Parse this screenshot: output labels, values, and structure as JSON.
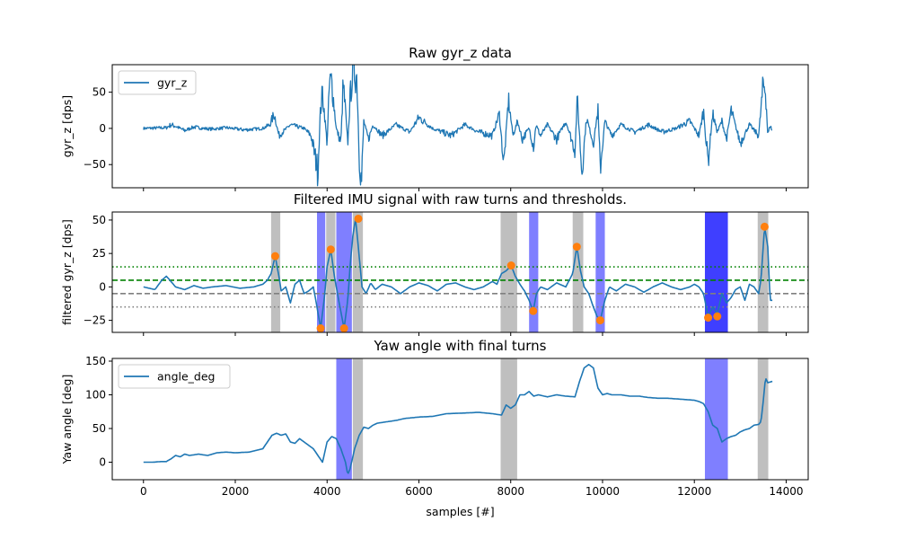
{
  "chart_data": [
    {
      "type": "line",
      "title": "Raw gyr_z data",
      "xlabel": "",
      "ylabel": "gyr_z [dps]",
      "xlim": [
        -680,
        14480
      ],
      "ylim": [
        -82,
        88
      ],
      "xticks": [
        0,
        2000,
        4000,
        6000,
        8000,
        10000,
        12000,
        14000
      ],
      "xtick_labels_visible": false,
      "yticks": [
        -50,
        0,
        50
      ],
      "ytick_labels": [
        "−50",
        "0",
        "50"
      ],
      "legend": {
        "position": "upper-left",
        "entries": [
          "gyr_z"
        ]
      },
      "series": [
        {
          "name": "gyr_z",
          "color": "#1f77b4",
          "noisy": true,
          "x": [
            0,
            500,
            600,
            700,
            900,
            1100,
            1300,
            1500,
            1800,
            2200,
            2600,
            2750,
            2850,
            2950,
            3200,
            3500,
            3650,
            3700,
            3800,
            3850,
            3900,
            4000,
            4050,
            4100,
            4200,
            4300,
            4350,
            4400,
            4450,
            4500,
            4550,
            4600,
            4650,
            4700,
            4750,
            4800,
            4900,
            5000,
            5200,
            5500,
            5800,
            6000,
            6300,
            6700,
            7000,
            7300,
            7600,
            7750,
            7850,
            7950,
            8050,
            8150,
            8250,
            8400,
            8500,
            8550,
            8650,
            8800,
            9000,
            9200,
            9400,
            9450,
            9550,
            9650,
            9800,
            9900,
            9950,
            10050,
            10200,
            10400,
            10700,
            11000,
            11300,
            11600,
            11900,
            12100,
            12200,
            12250,
            12300,
            12400,
            12500,
            12600,
            12700,
            12800,
            13000,
            13200,
            13400,
            13500,
            13550,
            13600,
            13650,
            13700
          ],
          "y": [
            0,
            1,
            5,
            3,
            -3,
            2,
            0,
            -1,
            1,
            -2,
            0,
            5,
            20,
            -10,
            5,
            0,
            -10,
            -25,
            -60,
            20,
            50,
            -20,
            60,
            65,
            0,
            -20,
            60,
            25,
            -20,
            40,
            75,
            80,
            70,
            -40,
            -75,
            10,
            -15,
            5,
            -10,
            5,
            -5,
            15,
            0,
            -10,
            5,
            -5,
            -10,
            20,
            -50,
            40,
            -10,
            10,
            -15,
            0,
            -25,
            5,
            -10,
            5,
            -15,
            10,
            -30,
            40,
            -60,
            15,
            -20,
            25,
            -55,
            10,
            -10,
            5,
            -5,
            5,
            -5,
            0,
            10,
            -10,
            25,
            -15,
            -45,
            20,
            -5,
            10,
            -15,
            25,
            -20,
            5,
            -10,
            60,
            55,
            -10,
            5,
            -5
          ]
        }
      ]
    },
    {
      "type": "line",
      "title": "Filtered IMU signal with raw turns and thresholds.",
      "xlabel": "",
      "ylabel": "filtered gyr_z [dps]",
      "xlim": [
        -680,
        14480
      ],
      "ylim": [
        -34,
        56
      ],
      "xticks": [
        0,
        2000,
        4000,
        6000,
        8000,
        10000,
        12000,
        14000
      ],
      "xtick_labels_visible": false,
      "yticks": [
        -25,
        0,
        25,
        50
      ],
      "ytick_labels": [
        "−25",
        "0",
        "25",
        "50"
      ],
      "hlines": [
        {
          "y": 15,
          "color": "#008000",
          "style": "dotted"
        },
        {
          "y": 5,
          "color": "#008000",
          "style": "dashed"
        },
        {
          "y": -5,
          "color": "#808080",
          "style": "dashed"
        },
        {
          "y": -15,
          "color": "#808080",
          "style": "dotted"
        }
      ],
      "spans": [
        {
          "x0": 2780,
          "x1": 2980,
          "color": "#808080",
          "opacity": 0.5
        },
        {
          "x0": 3780,
          "x1": 3960,
          "color": "#0000ff",
          "opacity": 0.5
        },
        {
          "x0": 3980,
          "x1": 4180,
          "color": "#808080",
          "opacity": 0.5
        },
        {
          "x0": 4200,
          "x1": 4540,
          "color": "#0000ff",
          "opacity": 0.5
        },
        {
          "x0": 4560,
          "x1": 4780,
          "color": "#808080",
          "opacity": 0.5
        },
        {
          "x0": 7780,
          "x1": 8140,
          "color": "#808080",
          "opacity": 0.5
        },
        {
          "x0": 8400,
          "x1": 8600,
          "color": "#0000ff",
          "opacity": 0.5
        },
        {
          "x0": 9350,
          "x1": 9580,
          "color": "#808080",
          "opacity": 0.5
        },
        {
          "x0": 9850,
          "x1": 10050,
          "color": "#0000ff",
          "opacity": 0.5
        },
        {
          "x0": 12230,
          "x1": 12730,
          "color": "#0000ff",
          "opacity": 0.5
        },
        {
          "x0": 12230,
          "x1": 12730,
          "color": "#0000ff",
          "opacity": 0.5
        },
        {
          "x0": 13380,
          "x1": 13610,
          "color": "#808080",
          "opacity": 0.5
        }
      ],
      "markers": {
        "color": "#ff7f0e",
        "x": [
          2870,
          3860,
          4080,
          4370,
          4680,
          8010,
          8490,
          9440,
          9950,
          12300,
          12500,
          13530
        ],
        "y": [
          23,
          -31,
          28,
          -31,
          51,
          16,
          -18,
          30,
          -25,
          -23,
          -22,
          45
        ]
      },
      "series": [
        {
          "name": "filtered",
          "color": "#1f77b4",
          "noisy": false,
          "x": [
            0,
            250,
            400,
            500,
            700,
            900,
            1100,
            1300,
            1500,
            1800,
            2100,
            2400,
            2600,
            2700,
            2780,
            2870,
            2950,
            3000,
            3100,
            3200,
            3300,
            3400,
            3500,
            3600,
            3700,
            3780,
            3860,
            3950,
            4000,
            4080,
            4150,
            4200,
            4280,
            4370,
            4450,
            4500,
            4560,
            4620,
            4680,
            4760,
            4850,
            4950,
            5050,
            5200,
            5400,
            5600,
            5800,
            6000,
            6200,
            6400,
            6600,
            6800,
            7000,
            7200,
            7400,
            7600,
            7700,
            7800,
            7900,
            8010,
            8100,
            8200,
            8300,
            8400,
            8490,
            8560,
            8650,
            8800,
            9000,
            9200,
            9350,
            9440,
            9520,
            9600,
            9700,
            9800,
            9880,
            9950,
            10050,
            10150,
            10300,
            10500,
            10700,
            10900,
            11100,
            11300,
            11500,
            11700,
            11900,
            12000,
            12100,
            12200,
            12300,
            12400,
            12500,
            12600,
            12700,
            12800,
            12900,
            13000,
            13100,
            13200,
            13300,
            13400,
            13450,
            13530,
            13600,
            13650,
            13700
          ],
          "y": [
            0,
            -2,
            5,
            8,
            0,
            -2,
            1,
            -1,
            0,
            1,
            -1,
            0,
            2,
            5,
            10,
            23,
            8,
            -3,
            0,
            -12,
            2,
            5,
            -5,
            -3,
            0,
            -15,
            -31,
            -5,
            15,
            28,
            10,
            0,
            -15,
            -31,
            -10,
            15,
            38,
            51,
            30,
            0,
            -5,
            3,
            -2,
            2,
            0,
            -5,
            0,
            3,
            1,
            -3,
            2,
            3,
            0,
            -2,
            0,
            4,
            2,
            10,
            12,
            16,
            8,
            2,
            -3,
            -10,
            -18,
            -5,
            0,
            -2,
            3,
            0,
            10,
            30,
            12,
            0,
            -5,
            -15,
            -22,
            -25,
            -10,
            0,
            -3,
            2,
            0,
            -4,
            0,
            3,
            0,
            -2,
            0,
            2,
            0,
            -5,
            -22,
            -15,
            -20,
            -5,
            -12,
            -8,
            -2,
            0,
            -10,
            2,
            0,
            -5,
            5,
            45,
            30,
            -10,
            -10
          ]
        }
      ]
    },
    {
      "type": "line",
      "title": "Yaw angle with final turns",
      "xlabel": "samples [#]",
      "ylabel": "Yaw angle [deg]",
      "xlim": [
        -680,
        14480
      ],
      "ylim": [
        -26,
        154
      ],
      "xticks": [
        0,
        2000,
        4000,
        6000,
        8000,
        10000,
        12000,
        14000
      ],
      "xtick_labels": [
        "0",
        "2000",
        "4000",
        "6000",
        "8000",
        "10000",
        "12000",
        "14000"
      ],
      "yticks": [
        0,
        50,
        100,
        150
      ],
      "ytick_labels": [
        "0",
        "50",
        "100",
        "150"
      ],
      "legend": {
        "position": "upper-left",
        "entries": [
          "angle_deg"
        ]
      },
      "spans": [
        {
          "x0": 4200,
          "x1": 4540,
          "color": "#0000ff",
          "opacity": 0.5
        },
        {
          "x0": 4560,
          "x1": 4780,
          "color": "#808080",
          "opacity": 0.5
        },
        {
          "x0": 7780,
          "x1": 8140,
          "color": "#808080",
          "opacity": 0.5
        },
        {
          "x0": 12230,
          "x1": 12730,
          "color": "#0000ff",
          "opacity": 0.5
        },
        {
          "x0": 13380,
          "x1": 13610,
          "color": "#808080",
          "opacity": 0.5
        }
      ],
      "series": [
        {
          "name": "angle_deg",
          "color": "#1f77b4",
          "noisy": false,
          "x": [
            0,
            200,
            400,
            500,
            600,
            700,
            800,
            900,
            1000,
            1200,
            1400,
            1600,
            1800,
            2000,
            2300,
            2600,
            2800,
            2900,
            3000,
            3100,
            3200,
            3300,
            3400,
            3500,
            3600,
            3700,
            3800,
            3900,
            4000,
            4100,
            4200,
            4300,
            4400,
            4450,
            4500,
            4600,
            4700,
            4800,
            4900,
            5000,
            5100,
            5300,
            5500,
            5700,
            6000,
            6300,
            6600,
            7000,
            7300,
            7600,
            7800,
            7900,
            8000,
            8100,
            8200,
            8300,
            8400,
            8500,
            8600,
            8800,
            9000,
            9200,
            9400,
            9500,
            9600,
            9700,
            9800,
            9900,
            10000,
            10100,
            10200,
            10400,
            10600,
            10800,
            11000,
            11200,
            11400,
            11600,
            11800,
            12000,
            12100,
            12200,
            12300,
            12400,
            12500,
            12600,
            12700,
            12800,
            12900,
            13000,
            13100,
            13200,
            13300,
            13400,
            13450,
            13500,
            13550,
            13600,
            13700
          ],
          "y": [
            0,
            0,
            1,
            1,
            5,
            10,
            8,
            12,
            10,
            12,
            10,
            14,
            15,
            14,
            15,
            20,
            40,
            43,
            40,
            42,
            30,
            28,
            35,
            30,
            25,
            20,
            10,
            0,
            30,
            38,
            35,
            20,
            0,
            -18,
            -10,
            20,
            40,
            52,
            50,
            55,
            58,
            60,
            62,
            65,
            67,
            68,
            72,
            73,
            74,
            72,
            70,
            85,
            80,
            85,
            100,
            100,
            105,
            98,
            100,
            97,
            100,
            98,
            97,
            120,
            140,
            145,
            140,
            110,
            100,
            102,
            100,
            100,
            98,
            98,
            96,
            95,
            95,
            94,
            93,
            92,
            90,
            87,
            75,
            55,
            50,
            30,
            35,
            38,
            40,
            45,
            48,
            50,
            55,
            56,
            60,
            90,
            125,
            118,
            120
          ]
        }
      ]
    }
  ]
}
